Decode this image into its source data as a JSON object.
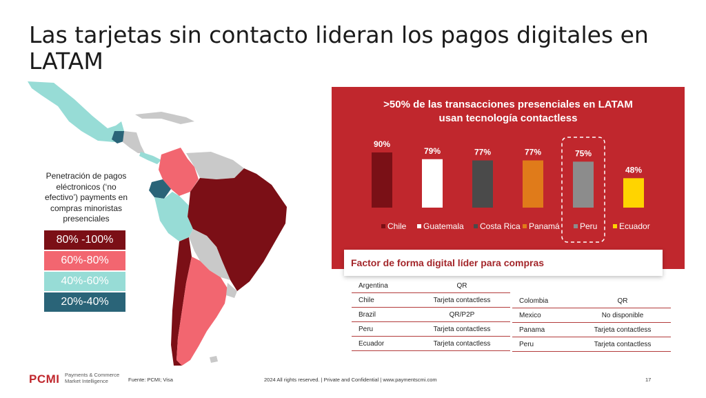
{
  "title": "Las tarjetas sin contacto lideran los pagos digitales en LATAM",
  "legend": {
    "heading": [
      "Penetración de pagos",
      "eléctronicos (‘no",
      "efectivo’) payments en",
      "compras minoristas",
      "presenciales"
    ],
    "items": [
      {
        "label": "80% -100%",
        "color": "#7b0f16"
      },
      {
        "label": "60%-80%",
        "color": "#f26670"
      },
      {
        "label": "40%-60%",
        "color": "#97dcd6"
      },
      {
        "label": "20%-40%",
        "color": "#2a6478"
      }
    ],
    "no_data_color": "#c9c9c9"
  },
  "chart_data": {
    "type": "bar",
    "title": ">50% de las transacciones presenciales en LATAM usan tecnología contactless",
    "title_lines": [
      ">50% de las transacciones presenciales en LATAM",
      "usan tecnología contactless"
    ],
    "categories": [
      "Chile",
      "Guatemala",
      "Costa Rica",
      "Panamá",
      "Peru",
      "Ecuador"
    ],
    "values": [
      90,
      79,
      77,
      77,
      75,
      48
    ],
    "value_labels": [
      "90%",
      "79%",
      "77%",
      "77%",
      "75%",
      "48%"
    ],
    "colors": [
      "#7a1016",
      "#ffffff",
      "#4a4a4a",
      "#e07b1a",
      "#8c8c8c",
      "#ffd400"
    ],
    "highlight": "Peru",
    "legend_position": "bottom",
    "grid": false,
    "xlabel": "",
    "ylabel": ""
  },
  "factor": {
    "title": "Factor de forma digital líder para compras",
    "left_table": [
      {
        "country": "Argentina",
        "value": "QR"
      },
      {
        "country": "Chile",
        "value": "Tarjeta contactless"
      },
      {
        "country": "Brazil",
        "value": "QR/P2P"
      },
      {
        "country": "Peru",
        "value": "Tarjeta contactless"
      },
      {
        "country": "Ecuador",
        "value": "Tarjeta contactless"
      }
    ],
    "right_table": [
      {
        "country": "Colombia",
        "value": "QR"
      },
      {
        "country": "Mexico",
        "value": "No disponible"
      },
      {
        "country": "Panama",
        "value": "Tarjeta contactless"
      },
      {
        "country": "Peru",
        "value": "Tarjeta contactless"
      }
    ]
  },
  "footer": {
    "brand": "PCMI",
    "brand_sub": [
      "Payments & Commerce",
      "Market Intelligence"
    ],
    "source": "Fuente: PCMI; Visa",
    "rights": "2024 All rights reserved. | Private and Confidential | www.paymentscmi.com",
    "page": "17"
  }
}
